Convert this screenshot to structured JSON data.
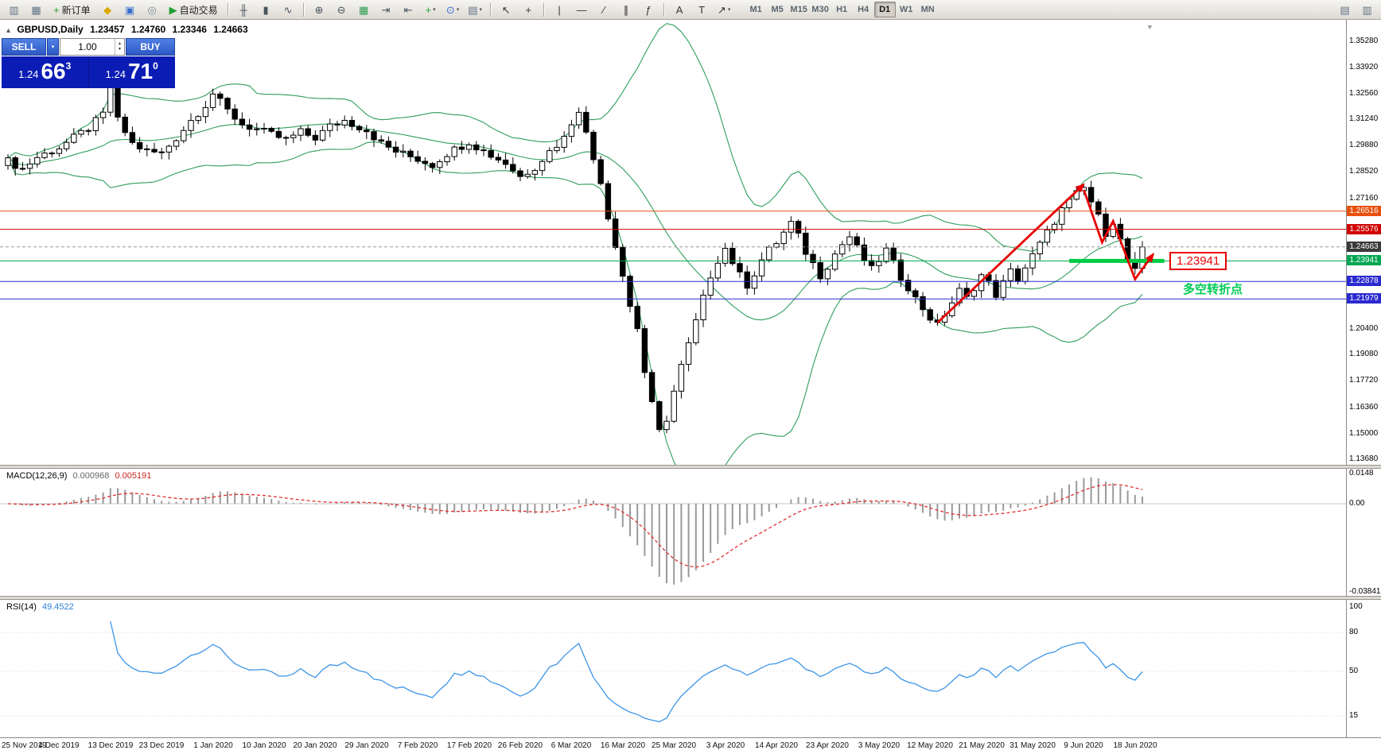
{
  "toolbar": {
    "items": [
      {
        "type": "icon",
        "name": "new-chart-icon",
        "glyph": "▥",
        "color": "#5f7385"
      },
      {
        "type": "icon",
        "name": "profiles-icon",
        "glyph": "▦",
        "color": "#5f7385"
      },
      {
        "type": "button",
        "name": "new-order-button",
        "glyph": "+",
        "color": "#1fa032",
        "label": "新订单"
      },
      {
        "type": "icon",
        "name": "metaeditor-icon",
        "glyph": "◆",
        "color": "#dba800"
      },
      {
        "type": "icon",
        "name": "terminal-icon",
        "glyph": "▣",
        "color": "#3a6fd0"
      },
      {
        "type": "icon",
        "name": "strategy-tester-icon",
        "glyph": "◎",
        "color": "#7d8c9b"
      },
      {
        "type": "button",
        "name": "autotrading-button",
        "glyph": "▶",
        "color": "#1fa032",
        "label": "自动交易"
      },
      {
        "type": "sep"
      },
      {
        "type": "icon",
        "name": "bar-chart-icon",
        "glyph": "╫",
        "color": "#4a5560"
      },
      {
        "type": "icon",
        "name": "candlestick-chart-icon",
        "glyph": "▮",
        "color": "#4a5560"
      },
      {
        "type": "icon",
        "name": "line-chart-icon",
        "glyph": "∿",
        "color": "#4a5560"
      },
      {
        "type": "sep"
      },
      {
        "type": "icon",
        "name": "zoom-in-icon",
        "glyph": "⊕",
        "color": "#4a5560"
      },
      {
        "type": "icon",
        "name": "zoom-out-icon",
        "glyph": "⊖",
        "color": "#4a5560"
      },
      {
        "type": "icon",
        "name": "tile-windows-icon",
        "glyph": "▦",
        "color": "#2f9e4f"
      },
      {
        "type": "icon",
        "name": "auto-scroll-icon",
        "glyph": "⇥",
        "color": "#4a5560"
      },
      {
        "type": "icon",
        "name": "chart-shift-icon",
        "glyph": "⇤",
        "color": "#4a5560"
      },
      {
        "type": "icon",
        "name": "indicators-icon",
        "glyph": "+",
        "color": "#1fa032",
        "caret": true
      },
      {
        "type": "icon",
        "name": "periods-icon",
        "glyph": "⊙",
        "color": "#3a6fd0",
        "caret": true
      },
      {
        "type": "icon",
        "name": "templates-icon",
        "glyph": "▤",
        "color": "#5f7385",
        "caret": true
      },
      {
        "type": "sep"
      },
      {
        "type": "icon",
        "name": "cursor-icon",
        "glyph": "↖",
        "color": "#333"
      },
      {
        "type": "icon",
        "name": "crosshair-icon",
        "glyph": "+",
        "color": "#333"
      },
      {
        "type": "sep"
      },
      {
        "type": "icon",
        "name": "vertical-line-tool-icon",
        "glyph": "|",
        "color": "#333"
      },
      {
        "type": "icon",
        "name": "horizontal-line-tool-icon",
        "glyph": "—",
        "color": "#333"
      },
      {
        "type": "icon",
        "name": "trendline-tool-icon",
        "glyph": "∕",
        "color": "#333"
      },
      {
        "type": "icon",
        "name": "channel-tool-icon",
        "glyph": "∥",
        "color": "#333"
      },
      {
        "type": "icon",
        "name": "fibonacci-tool-icon",
        "glyph": "ƒ",
        "color": "#333"
      },
      {
        "type": "sep"
      },
      {
        "type": "icon",
        "name": "text-tool-icon",
        "glyph": "A",
        "color": "#333"
      },
      {
        "type": "icon",
        "name": "text-label-tool-icon",
        "glyph": "T",
        "color": "#333"
      },
      {
        "type": "icon",
        "name": "arrows-tool-icon",
        "glyph": "↗",
        "color": "#333",
        "caret": true
      }
    ],
    "timeframes": [
      {
        "label": "M1"
      },
      {
        "label": "M5"
      },
      {
        "label": "M15"
      },
      {
        "label": "M30"
      },
      {
        "label": "H1"
      },
      {
        "label": "H4"
      },
      {
        "label": "D1",
        "active": true
      },
      {
        "label": "W1"
      },
      {
        "label": "MN"
      }
    ],
    "right_icons": [
      {
        "name": "print-icon",
        "glyph": "▤",
        "color": "#5f7385"
      },
      {
        "name": "print-preview-icon",
        "glyph": "▥",
        "color": "#5f7385"
      }
    ]
  },
  "chart_header": {
    "collapse_glyph": "▴",
    "symbol": "GBPUSD,Daily",
    "open": "1.23457",
    "high": "1.24760",
    "low": "1.23346",
    "close": "1.24663"
  },
  "trade_panel": {
    "sell_label": "SELL",
    "buy_label": "BUY",
    "volume": "1.00",
    "caret_glyph": "▾",
    "spinner_up": "▴",
    "spinner_down": "▾",
    "sell_price": "1.24",
    "sell_pips": "66",
    "sell_sup": "3",
    "buy_price": "1.24",
    "buy_pips": "71",
    "buy_sup": "0"
  },
  "macd": {
    "label": "MACD(12,26,9)",
    "value1": "0.000968",
    "value2": "0.005191",
    "axis": [
      {
        "value": 0.0148,
        "text": "0.0148"
      },
      {
        "value": 0,
        "text": "0.00"
      },
      {
        "value": -0.038415,
        "text": "-0.038415"
      }
    ]
  },
  "rsi": {
    "label": "RSI(14)",
    "value": "49.4522",
    "axis": [
      "100",
      "80",
      "50",
      "15"
    ]
  },
  "chart_data": {
    "type": "candlestick",
    "symbol": "GBPUSD",
    "timeframe": "Daily",
    "num_candles": 156,
    "last_close": 1.24663,
    "price_axis": {
      "ticks": [
        "1.35280",
        "1.33920",
        "1.32560",
        "1.31240",
        "1.29880",
        "1.28520",
        "1.27160",
        "1.20400",
        "1.19080",
        "1.17720",
        "1.16360",
        "1.15000",
        "1.13680"
      ]
    },
    "hlines": [
      {
        "price": 1.26516,
        "label": "1.26516",
        "color": "#e8500e",
        "style": "solid"
      },
      {
        "price": 1.25576,
        "label": "1.25576",
        "color": "#d00000",
        "style": "solid"
      },
      {
        "price": 1.24663,
        "label": "1.24663",
        "color": "#999999",
        "style": "dashed",
        "badge": "#3a3a3a"
      },
      {
        "price": 1.23941,
        "label": "1.23941",
        "color": "#00a651",
        "style": "solid"
      },
      {
        "price": 1.22878,
        "label": "1.22878",
        "color": "#2a2ad0",
        "style": "solid"
      },
      {
        "price": 1.21979,
        "label": "1.21979",
        "color": "#2a2ad0",
        "style": "solid"
      }
    ],
    "indicators": {
      "bollinger": {
        "period": 20,
        "deviation": 2,
        "color": "#2e9e5b"
      },
      "macd": {
        "fast": 12,
        "slow": 26,
        "signal": 9,
        "histogram_color": "#9a9a9a",
        "signal_color": "#e03030"
      },
      "rsi": {
        "period": 14,
        "color": "#3d95e8"
      }
    },
    "annotations": {
      "price_callout": "1.23941",
      "pivot_text": "多空转折点",
      "pivot_color": "#00cc55",
      "arrow_color": "#e80202",
      "shift_marker_glyph": "▼",
      "green_segment": {
        "from": 145,
        "to": 158,
        "price": 1.23941,
        "color": "#00cc44"
      },
      "trend_arrow": [
        [
          127,
          1.2075
        ],
        [
          147,
          1.279
        ]
      ],
      "zigzag_arrow": [
        [
          147,
          1.2762
        ],
        [
          149.5,
          1.249
        ],
        [
          151,
          1.26
        ],
        [
          154,
          1.23
        ],
        [
          156.5,
          1.243
        ]
      ]
    },
    "price_anchors": [
      [
        0,
        1.291
      ],
      [
        2,
        1.287
      ],
      [
        4,
        1.293
      ],
      [
        7,
        1.298
      ],
      [
        9,
        1.303
      ],
      [
        11,
        1.308
      ],
      [
        13,
        1.315
      ],
      [
        14,
        1.332
      ],
      [
        15,
        1.312
      ],
      [
        17,
        1.3
      ],
      [
        19,
        1.296
      ],
      [
        21,
        1.295
      ],
      [
        23,
        1.303
      ],
      [
        25,
        1.312
      ],
      [
        27,
        1.32
      ],
      [
        28,
        1.326
      ],
      [
        30,
        1.317
      ],
      [
        32,
        1.31
      ],
      [
        35,
        1.306
      ],
      [
        38,
        1.302
      ],
      [
        40,
        1.306
      ],
      [
        42,
        1.303
      ],
      [
        44,
        1.309
      ],
      [
        46,
        1.312
      ],
      [
        49,
        1.307
      ],
      [
        51,
        1.3
      ],
      [
        53,
        1.296
      ],
      [
        56,
        1.292
      ],
      [
        58,
        1.289
      ],
      [
        60,
        1.295
      ],
      [
        63,
        1.301
      ],
      [
        65,
        1.296
      ],
      [
        68,
        1.29
      ],
      [
        70,
        1.283
      ],
      [
        72,
        1.288
      ],
      [
        74,
        1.296
      ],
      [
        76,
        1.303
      ],
      [
        77,
        1.311
      ],
      [
        78,
        1.318
      ],
      [
        79,
        1.305
      ],
      [
        80,
        1.292
      ],
      [
        81,
        1.281
      ],
      [
        82,
        1.262
      ],
      [
        83,
        1.248
      ],
      [
        84,
        1.232
      ],
      [
        85,
        1.216
      ],
      [
        86,
        1.205
      ],
      [
        87,
        1.182
      ],
      [
        88,
        1.165
      ],
      [
        89,
        1.151
      ],
      [
        90,
        1.158
      ],
      [
        91,
        1.172
      ],
      [
        92,
        1.185
      ],
      [
        93,
        1.196
      ],
      [
        94,
        1.208
      ],
      [
        95,
        1.22
      ],
      [
        96,
        1.232
      ],
      [
        97,
        1.24
      ],
      [
        98,
        1.246
      ],
      [
        99,
        1.239
      ],
      [
        100,
        1.232
      ],
      [
        101,
        1.227
      ],
      [
        102,
        1.233
      ],
      [
        103,
        1.24
      ],
      [
        104,
        1.245
      ],
      [
        105,
        1.249
      ],
      [
        106,
        1.254
      ],
      [
        107,
        1.259
      ],
      [
        108,
        1.252
      ],
      [
        109,
        1.244
      ],
      [
        110,
        1.238
      ],
      [
        111,
        1.232
      ],
      [
        112,
        1.237
      ],
      [
        113,
        1.243
      ],
      [
        114,
        1.248
      ],
      [
        115,
        1.252
      ],
      [
        116,
        1.246
      ],
      [
        117,
        1.24
      ],
      [
        118,
        1.235
      ],
      [
        119,
        1.24
      ],
      [
        120,
        1.245
      ],
      [
        121,
        1.238
      ],
      [
        122,
        1.231
      ],
      [
        123,
        1.226
      ],
      [
        124,
        1.22
      ],
      [
        125,
        1.215
      ],
      [
        126,
        1.21
      ],
      [
        127,
        1.206
      ],
      [
        128,
        1.212
      ],
      [
        129,
        1.218
      ],
      [
        130,
        1.224
      ],
      [
        131,
        1.22
      ],
      [
        132,
        1.226
      ],
      [
        133,
        1.232
      ],
      [
        134,
        1.228
      ],
      [
        135,
        1.222
      ],
      [
        136,
        1.228
      ],
      [
        137,
        1.234
      ],
      [
        138,
        1.23
      ],
      [
        139,
        1.236
      ],
      [
        140,
        1.242
      ],
      [
        141,
        1.248
      ],
      [
        142,
        1.254
      ],
      [
        143,
        1.26
      ],
      [
        144,
        1.266
      ],
      [
        145,
        1.27
      ],
      [
        146,
        1.274
      ],
      [
        147,
        1.277
      ],
      [
        148,
        1.27
      ],
      [
        149,
        1.262
      ],
      [
        150,
        1.254
      ],
      [
        151,
        1.26
      ],
      [
        152,
        1.25
      ],
      [
        153,
        1.24
      ],
      [
        154,
        1.234
      ],
      [
        155,
        1.2466
      ]
    ],
    "dates": [
      "25 Nov 2019",
      "4 Dec 2019",
      "13 Dec 2019",
      "23 Dec 2019",
      "1 Jan 2020",
      "10 Jan 2020",
      "20 Jan 2020",
      "29 Jan 2020",
      "7 Feb 2020",
      "17 Feb 2020",
      "26 Feb 2020",
      "6 Mar 2020",
      "16 Mar 2020",
      "25 Mar 2020",
      "3 Apr 2020",
      "14 Apr 2020",
      "23 Apr 2020",
      "3 May 2020",
      "12 May 2020",
      "21 May 2020",
      "31 May 2020",
      "9 Jun 2020",
      "18 Jun 2020"
    ]
  }
}
